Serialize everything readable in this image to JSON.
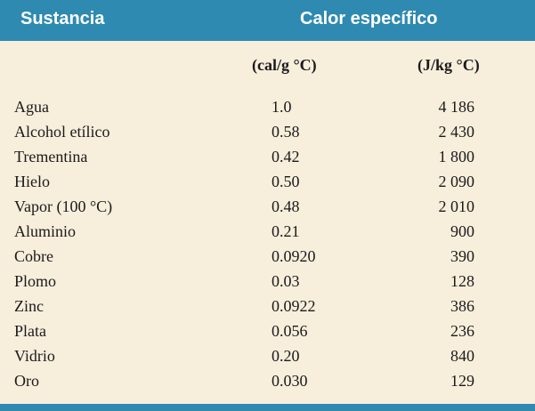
{
  "table": {
    "header": {
      "substance": "Sustancia",
      "specific_heat": "Calor específico"
    },
    "units": {
      "cal": "(cal/g °C)",
      "joule": "(J/kg °C)"
    },
    "rows": [
      {
        "name": "Agua",
        "cal": "1.0",
        "j": "4 186"
      },
      {
        "name": "Alcohol etílico",
        "cal": "0.58",
        "j": "2 430"
      },
      {
        "name": "Trementina",
        "cal": "0.42",
        "j": "1 800"
      },
      {
        "name": "Hielo",
        "cal": "0.50",
        "j": "2 090"
      },
      {
        "name": "Vapor (100 °C)",
        "cal": "0.48",
        "j": "2 010"
      },
      {
        "name": "Aluminio",
        "cal": "0.21",
        "j": "900"
      },
      {
        "name": "Cobre",
        "cal": "0.0920",
        "j": "390"
      },
      {
        "name": "Plomo",
        "cal": "0.03",
        "j": "128"
      },
      {
        "name": "Zinc",
        "cal": "0.0922",
        "j": "386"
      },
      {
        "name": "Plata",
        "cal": "0.056",
        "j": "236"
      },
      {
        "name": "Vidrio",
        "cal": "0.20",
        "j": "840"
      },
      {
        "name": "Oro",
        "cal": "0.030",
        "j": "129"
      }
    ],
    "colors": {
      "header_bg": "#2e8ab0",
      "body_bg": "#f8eedc",
      "text": "#1a1a1a"
    }
  }
}
